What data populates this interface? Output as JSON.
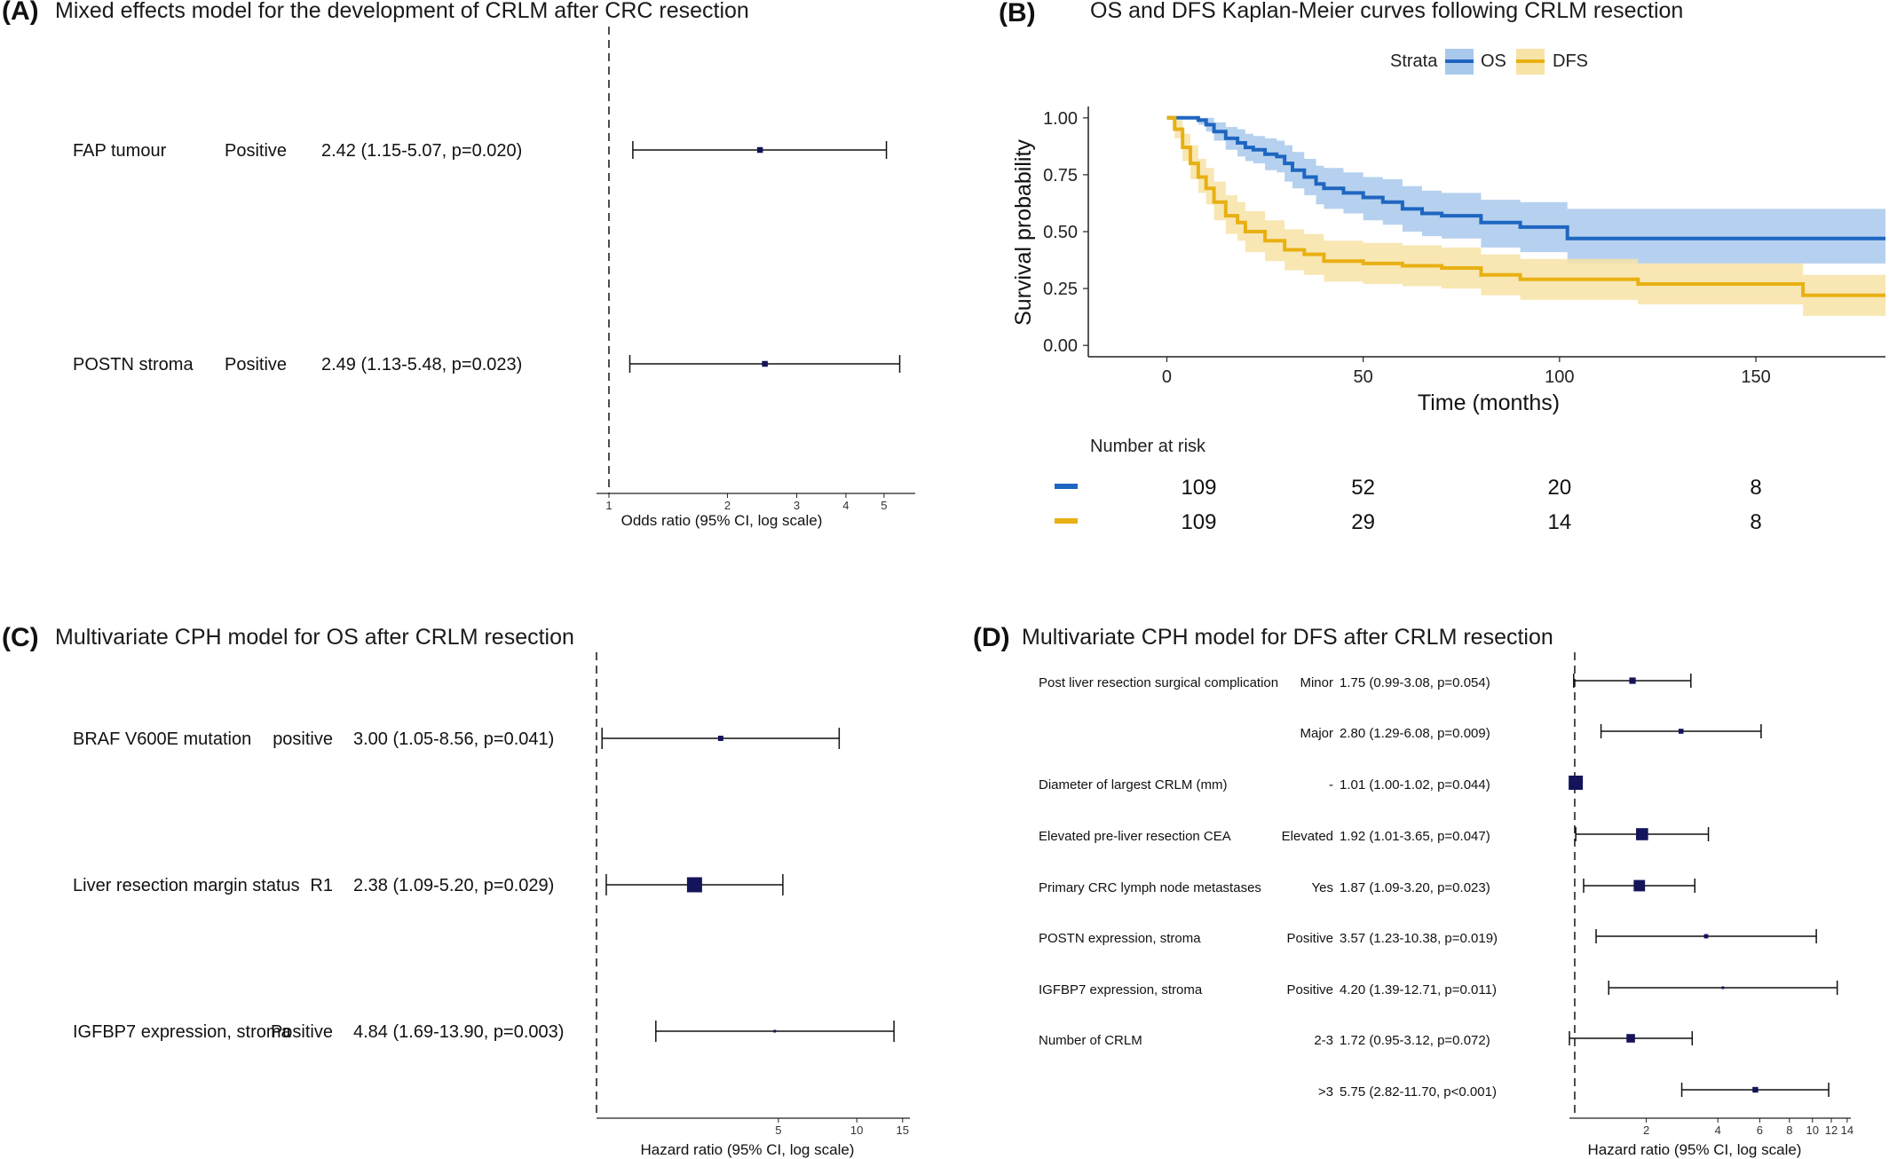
{
  "colors": {
    "marker": "#14145a",
    "line": "#111111",
    "os": "#1f66c1",
    "os_band": "#a9c9ec",
    "dfs": "#e8b012",
    "dfs_band": "#f7e3a6"
  },
  "chart_data": [
    {
      "id": "A",
      "type": "forest",
      "tag": "(A)",
      "title": "Mixed effects model for the development of CRLM after CRC resection",
      "xlabel": "Odds ratio (95% CI, log scale)",
      "xscale": "log",
      "xlim": [
        0.93,
        6.0
      ],
      "ref_line": 1,
      "ticks": [
        1,
        2,
        3,
        4,
        5
      ],
      "rows": [
        {
          "variable": "FAP tumour",
          "level": "Positive",
          "label": "2.42 (1.15-5.07, p=0.020)",
          "or": 2.42,
          "lo": 1.15,
          "hi": 5.07,
          "weight": 0.5
        },
        {
          "variable": "POSTN stroma",
          "level": "Positive",
          "label": "2.49 (1.13-5.48, p=0.023)",
          "or": 2.49,
          "lo": 1.13,
          "hi": 5.48,
          "weight": 0.5
        }
      ]
    },
    {
      "id": "B",
      "type": "line",
      "tag": "(B)",
      "title": "OS and DFS Kaplan-Meier curves following CRLM resection",
      "xlabel": "Time (months)",
      "ylabel": "Survival probability",
      "xlim": [
        -20,
        183
      ],
      "ylim": [
        -0.05,
        1.05
      ],
      "xticks": [
        0,
        50,
        100,
        150
      ],
      "yticks": [
        "0.00",
        "0.25",
        "0.50",
        "0.75",
        "1.00"
      ],
      "legend": {
        "title": "Strata",
        "items": [
          "OS",
          "DFS"
        ],
        "position": "top"
      },
      "series": [
        {
          "name": "OS",
          "x": [
            0,
            4,
            8,
            10,
            12,
            15,
            18,
            20,
            22,
            25,
            28,
            30,
            32,
            35,
            38,
            40,
            45,
            50,
            55,
            60,
            65,
            70,
            80,
            90,
            100,
            102,
            183
          ],
          "y": [
            1.0,
            1.0,
            0.99,
            0.97,
            0.94,
            0.91,
            0.89,
            0.87,
            0.86,
            0.84,
            0.83,
            0.8,
            0.77,
            0.74,
            0.71,
            0.69,
            0.67,
            0.65,
            0.63,
            0.6,
            0.58,
            0.57,
            0.54,
            0.52,
            0.52,
            0.47,
            0.47
          ],
          "lo": [
            1.0,
            1.0,
            0.97,
            0.94,
            0.9,
            0.86,
            0.83,
            0.81,
            0.8,
            0.77,
            0.76,
            0.72,
            0.69,
            0.66,
            0.62,
            0.6,
            0.58,
            0.55,
            0.53,
            0.5,
            0.48,
            0.47,
            0.43,
            0.41,
            0.41,
            0.36,
            0.36
          ],
          "hi": [
            1.0,
            1.0,
            1.0,
            1.0,
            0.98,
            0.96,
            0.95,
            0.93,
            0.92,
            0.91,
            0.9,
            0.88,
            0.85,
            0.82,
            0.79,
            0.78,
            0.76,
            0.74,
            0.73,
            0.7,
            0.68,
            0.67,
            0.64,
            0.63,
            0.63,
            0.6,
            0.6
          ]
        },
        {
          "name": "DFS",
          "x": [
            0,
            2,
            4,
            6,
            8,
            10,
            12,
            15,
            18,
            20,
            25,
            30,
            35,
            40,
            50,
            60,
            70,
            80,
            90,
            100,
            120,
            140,
            160,
            162,
            183
          ],
          "y": [
            1.0,
            0.95,
            0.87,
            0.8,
            0.74,
            0.69,
            0.63,
            0.57,
            0.54,
            0.5,
            0.46,
            0.42,
            0.4,
            0.37,
            0.36,
            0.35,
            0.34,
            0.31,
            0.29,
            0.29,
            0.27,
            0.27,
            0.27,
            0.22,
            0.22
          ],
          "lo": [
            1.0,
            0.91,
            0.81,
            0.73,
            0.67,
            0.62,
            0.55,
            0.49,
            0.46,
            0.41,
            0.37,
            0.33,
            0.31,
            0.28,
            0.27,
            0.26,
            0.25,
            0.22,
            0.2,
            0.2,
            0.18,
            0.18,
            0.18,
            0.13,
            0.13
          ],
          "hi": [
            1.0,
            0.99,
            0.93,
            0.88,
            0.82,
            0.78,
            0.72,
            0.66,
            0.63,
            0.59,
            0.55,
            0.51,
            0.49,
            0.46,
            0.45,
            0.44,
            0.43,
            0.4,
            0.38,
            0.38,
            0.36,
            0.36,
            0.36,
            0.31,
            0.31
          ]
        }
      ],
      "risk_table": {
        "title": "Number at risk",
        "times": [
          0,
          50,
          100,
          150
        ],
        "rows": [
          {
            "name": "OS",
            "values": [
              "109",
              "52",
              "20",
              "8"
            ]
          },
          {
            "name": "DFS",
            "values": [
              "109",
              "29",
              "14",
              "8"
            ]
          }
        ]
      }
    },
    {
      "id": "C",
      "type": "forest",
      "tag": "(C)",
      "title": "Multivariate CPH model for OS after CRLM resection",
      "xlabel": "Hazard ratio (95% CI, log scale)",
      "xscale": "log",
      "xlim": [
        1.0,
        16.0
      ],
      "ref_line": 1,
      "ticks": [
        5,
        10,
        15
      ],
      "rows": [
        {
          "variable": "BRAF V600E mutation",
          "level": "positive",
          "label": "3.00 (1.05-8.56, p=0.041)",
          "or": 3.0,
          "lo": 1.05,
          "hi": 8.56,
          "weight": 0.35
        },
        {
          "variable": "Liver resection margin status",
          "level": "R1",
          "label": "2.38 (1.09-5.20, p=0.029)",
          "or": 2.38,
          "lo": 1.09,
          "hi": 5.2,
          "weight": 1.0
        },
        {
          "variable": "IGFBP7 expression, stroma",
          "level": "Positive",
          "label": "4.84 (1.69-13.90, p=0.003)",
          "or": 4.84,
          "lo": 1.69,
          "hi": 13.9,
          "weight": 0.15
        }
      ]
    },
    {
      "id": "D",
      "type": "forest",
      "tag": "(D)",
      "title": "Multivariate CPH model for DFS after CRLM resection",
      "xlabel": "Hazard ratio (95% CI, log scale)",
      "xscale": "log",
      "xlim": [
        0.95,
        14.5
      ],
      "ref_line": 1,
      "ticks": [
        2,
        4,
        6,
        8,
        10,
        12,
        14
      ],
      "rows": [
        {
          "variable": "Post liver resection surgical complication",
          "level": "Minor",
          "label": "1.75 (0.99-3.08, p=0.054)",
          "or": 1.75,
          "lo": 0.99,
          "hi": 3.08,
          "weight": 0.45
        },
        {
          "variable": "",
          "level": "Major",
          "label": "2.80 (1.29-6.08, p=0.009)",
          "or": 2.8,
          "lo": 1.29,
          "hi": 6.08,
          "weight": 0.35
        },
        {
          "variable": "Diameter of largest CRLM (mm)",
          "level": "-",
          "label": "1.01 (1.00-1.02, p=0.044)",
          "or": 1.01,
          "lo": 1.0,
          "hi": 1.02,
          "weight": 1.0
        },
        {
          "variable": "Elevated pre-liver resection CEA",
          "level": "Elevated",
          "label": "1.92 (1.01-3.65, p=0.047)",
          "or": 1.92,
          "lo": 1.01,
          "hi": 3.65,
          "weight": 0.85
        },
        {
          "variable": "Primary CRC lymph node metastases",
          "level": "Yes",
          "label": "1.87 (1.09-3.20, p=0.023)",
          "or": 1.87,
          "lo": 1.09,
          "hi": 3.2,
          "weight": 0.8
        },
        {
          "variable": "POSTN expression, stroma",
          "level": "Positive",
          "label": "3.57 (1.23-10.38, p=0.019)",
          "or": 3.57,
          "lo": 1.23,
          "hi": 10.38,
          "weight": 0.3
        },
        {
          "variable": "IGFBP7 expression, stroma",
          "level": "Positive",
          "label": "4.20 (1.39-12.71, p=0.011)",
          "or": 4.2,
          "lo": 1.39,
          "hi": 12.71,
          "weight": 0.15
        },
        {
          "variable": "Number of CRLM",
          "level": "2-3",
          "label": "1.72 (0.95-3.12, p=0.072)",
          "or": 1.72,
          "lo": 0.95,
          "hi": 3.12,
          "weight": 0.6
        },
        {
          "variable": "",
          "level": ">3",
          "label": "5.75 (2.82-11.70, p<0.001)",
          "or": 5.75,
          "lo": 2.82,
          "hi": 11.7,
          "weight": 0.4
        }
      ]
    }
  ]
}
